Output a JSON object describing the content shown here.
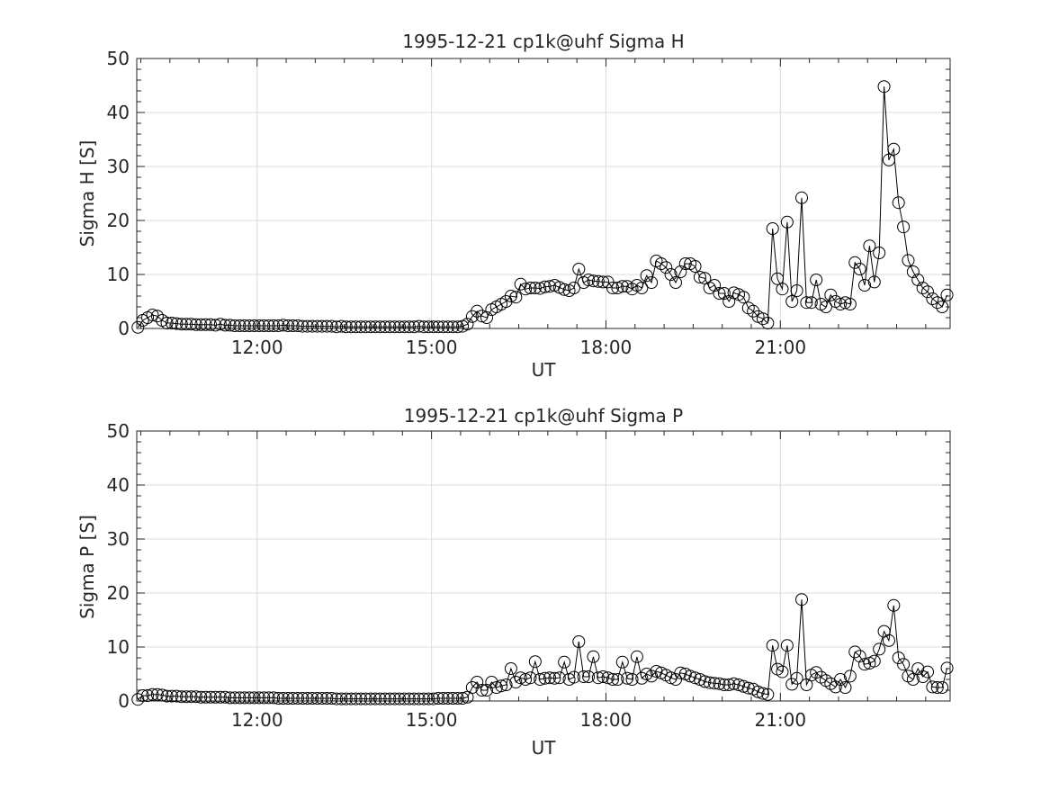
{
  "chart_data": [
    {
      "type": "line",
      "title": "1995-12-21  cp1k@uhf Sigma H",
      "xlabel": "UT",
      "ylabel": "Sigma H [S]",
      "xlim_hours": [
        9.93,
        23.92
      ],
      "ylim": [
        0,
        50
      ],
      "grid": true,
      "marker": "circle",
      "x_start_hours": 9.95,
      "x_step_minutes": 5,
      "x_ticks_hours": [
        12,
        15,
        18,
        21
      ],
      "x_tick_labels": [
        "12:00",
        "15:00",
        "18:00",
        "21:00"
      ],
      "y_ticks": [
        0,
        10,
        20,
        30,
        40,
        50
      ],
      "y_tick_labels": [
        "0",
        "10",
        "20",
        "30",
        "40",
        "50"
      ],
      "values": [
        0.2,
        1.5,
        2.0,
        2.5,
        2.3,
        1.5,
        1.0,
        1.0,
        0.9,
        0.8,
        0.8,
        0.8,
        0.7,
        0.7,
        0.7,
        0.7,
        0.6,
        0.8,
        0.6,
        0.6,
        0.5,
        0.5,
        0.5,
        0.5,
        0.5,
        0.5,
        0.5,
        0.5,
        0.5,
        0.5,
        0.6,
        0.5,
        0.5,
        0.5,
        0.4,
        0.4,
        0.4,
        0.4,
        0.4,
        0.4,
        0.4,
        0.3,
        0.4,
        0.3,
        0.3,
        0.3,
        0.3,
        0.3,
        0.3,
        0.3,
        0.3,
        0.3,
        0.3,
        0.3,
        0.3,
        0.3,
        0.3,
        0.3,
        0.4,
        0.3,
        0.3,
        0.3,
        0.3,
        0.3,
        0.3,
        0.3,
        0.3,
        0.4,
        0.8,
        2.2,
        3.2,
        2.3,
        2.0,
        3.5,
        4,
        4.5,
        5,
        6,
        5.8,
        8.2,
        7.3,
        7.5,
        7.5,
        7.4,
        7.7,
        7.8,
        8,
        7.6,
        7.2,
        7,
        7.5,
        11,
        8.5,
        9,
        8.8,
        8.7,
        8.6,
        8.6,
        7.5,
        7.5,
        7.8,
        7.8,
        7.3,
        8,
        7.5,
        9.8,
        8.5,
        12.5,
        12,
        11.3,
        10,
        8.5,
        10.5,
        12,
        12,
        11.5,
        9.5,
        9.3,
        7.5,
        8,
        6.5,
        6.5,
        5,
        6.6,
        6.3,
        5.8,
        3.8,
        3.2,
        2.2,
        1.8,
        1.0,
        18.5,
        9.2,
        7.3,
        19.7,
        5,
        7,
        24.2,
        4.8,
        4.8,
        9,
        4.5,
        4,
        6.2,
        5,
        4.5,
        4.8,
        4.5,
        12.2,
        11,
        8,
        15.3,
        8.6,
        14,
        44.8,
        31.2,
        33.2,
        23.3,
        18.8,
        12.6,
        10.5,
        9,
        7.5,
        6.8,
        5.5,
        4.8,
        4,
        6.2
      ]
    },
    {
      "type": "line",
      "title": "1995-12-21  cp1k@uhf Sigma P",
      "xlabel": "UT",
      "ylabel": "Sigma P [S]",
      "xlim_hours": [
        9.93,
        23.92
      ],
      "ylim": [
        0,
        50
      ],
      "grid": true,
      "marker": "circle",
      "x_start_hours": 9.95,
      "x_step_minutes": 5,
      "x_ticks_hours": [
        12,
        15,
        18,
        21
      ],
      "x_tick_labels": [
        "12:00",
        "15:00",
        "18:00",
        "21:00"
      ],
      "y_ticks": [
        0,
        10,
        20,
        30,
        40,
        50
      ],
      "y_tick_labels": [
        "0",
        "10",
        "20",
        "30",
        "40",
        "50"
      ],
      "values": [
        0.3,
        1.0,
        1.0,
        1.2,
        1.2,
        1.1,
        0.9,
        0.9,
        0.9,
        0.8,
        0.8,
        0.8,
        0.8,
        0.7,
        0.7,
        0.7,
        0.7,
        0.7,
        0.7,
        0.6,
        0.6,
        0.6,
        0.6,
        0.6,
        0.6,
        0.6,
        0.6,
        0.6,
        0.6,
        0.5,
        0.5,
        0.5,
        0.5,
        0.5,
        0.5,
        0.5,
        0.5,
        0.5,
        0.5,
        0.5,
        0.5,
        0.4,
        0.4,
        0.4,
        0.4,
        0.4,
        0.4,
        0.4,
        0.4,
        0.4,
        0.4,
        0.4,
        0.4,
        0.4,
        0.4,
        0.4,
        0.4,
        0.4,
        0.4,
        0.4,
        0.4,
        0.4,
        0.5,
        0.5,
        0.5,
        0.5,
        0.5,
        0.5,
        0.7,
        2.5,
        3.5,
        2.0,
        2.0,
        3.5,
        2.5,
        2.8,
        3.0,
        6.0,
        3.5,
        4.3,
        4.0,
        4.3,
        7.3,
        4.0,
        4.2,
        4.3,
        4.2,
        4.3,
        7.2,
        4.0,
        4.4,
        11.0,
        4.5,
        4.5,
        8.2,
        4.3,
        4.5,
        4.3,
        4.0,
        4.0,
        7.2,
        4.2,
        4.0,
        8.2,
        4.2,
        5.0,
        4.6,
        5.5,
        5.2,
        4.8,
        4.3,
        4.0,
        5.2,
        5.0,
        4.6,
        4.3,
        4.0,
        3.6,
        3.4,
        3.3,
        3.2,
        3.0,
        3.0,
        3.2,
        3.0,
        2.7,
        2.4,
        2.2,
        1.7,
        1.4,
        1.2,
        10.3,
        5.9,
        5.4,
        10.3,
        3.1,
        4.2,
        18.8,
        3.0,
        4.8,
        5.3,
        4.4,
        3.8,
        3.2,
        2.6,
        4.0,
        2.5,
        4.6,
        9.1,
        8.3,
        6.8,
        7.0,
        7.4,
        9.6,
        12.9,
        11.2,
        17.7,
        8.0,
        6.8,
        4.6,
        4.0,
        6.0,
        4.5,
        5.4,
        2.6,
        2.5,
        2.5,
        6.1
      ]
    }
  ]
}
